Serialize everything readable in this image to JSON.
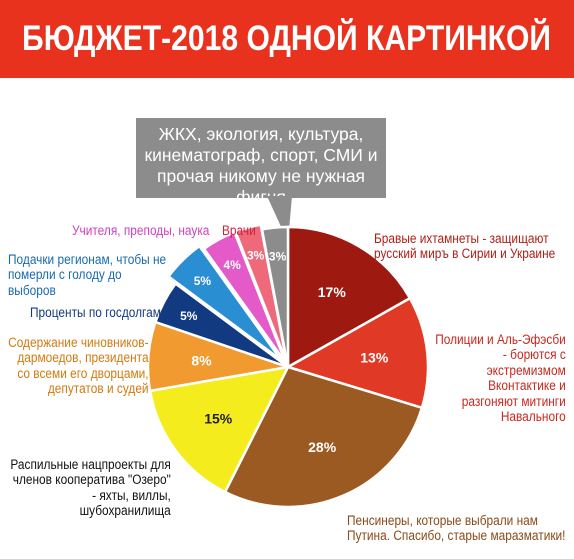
{
  "chart_data": {
    "type": "pie",
    "title": "БЮДЖЕТ-2018 ОДНОЙ КАРТИНКОЙ",
    "annotation": "ЖКХ, экология, культура, кинематограф, спорт, СМИ и прочая никому не нужная фигня",
    "slices": [
      {
        "label": "Бравые ихтамнеты - защищают русский миръ в Сирии и Украине",
        "value": 17,
        "value_label": "17%",
        "color": "#9e1a10",
        "label_color": "#b0201a"
      },
      {
        "label": "Полиции и Аль-Эфэсби - борются с экстремизмом Вконтактике и разгоняют митинги Навального",
        "value": 13,
        "value_label": "13%",
        "color": "#e03a26",
        "label_color": "#c8281e"
      },
      {
        "label": "Пенсинеры, которые выбрали нам Путина. Спасибо, старые маразматики!",
        "value": 28,
        "value_label": "28%",
        "color": "#9a5a22",
        "label_color": "#8a4a1a"
      },
      {
        "label": "Распильные нацпроекты для членов кооператива \"Озеро\" - яхты, виллы, шубохранилища",
        "value": 15,
        "value_label": "15%",
        "color": "#f5ec1e",
        "label_color": "#111111"
      },
      {
        "label": "Содержание чиновников-дармоедов, президента со всеми его дворцами, депутатов и судей",
        "value": 8,
        "value_label": "8%",
        "color": "#f09a30",
        "label_color": "#d27a10"
      },
      {
        "label": "Проценты по госдолгам",
        "value": 5,
        "value_label": "5%",
        "color": "#123a80",
        "label_color": "#123a80"
      },
      {
        "label": "Подачки регионам, чтобы не померли с голоду до выборов",
        "value": 5,
        "value_label": "5%",
        "color": "#2a8ed2",
        "label_color": "#1a6ab0"
      },
      {
        "label": "Учителя, преподы, наука",
        "value": 4,
        "value_label": "4%",
        "color": "#e35ac8",
        "label_color": "#d040c0"
      },
      {
        "label": "Врачи",
        "value": 3,
        "value_label": "3%",
        "color": "#ee6a7a",
        "label_color": "#d02040"
      },
      {
        "label": "",
        "value": 3,
        "value_label": "3%",
        "color": "#8c8c8c",
        "label_color": "#333333"
      }
    ]
  }
}
